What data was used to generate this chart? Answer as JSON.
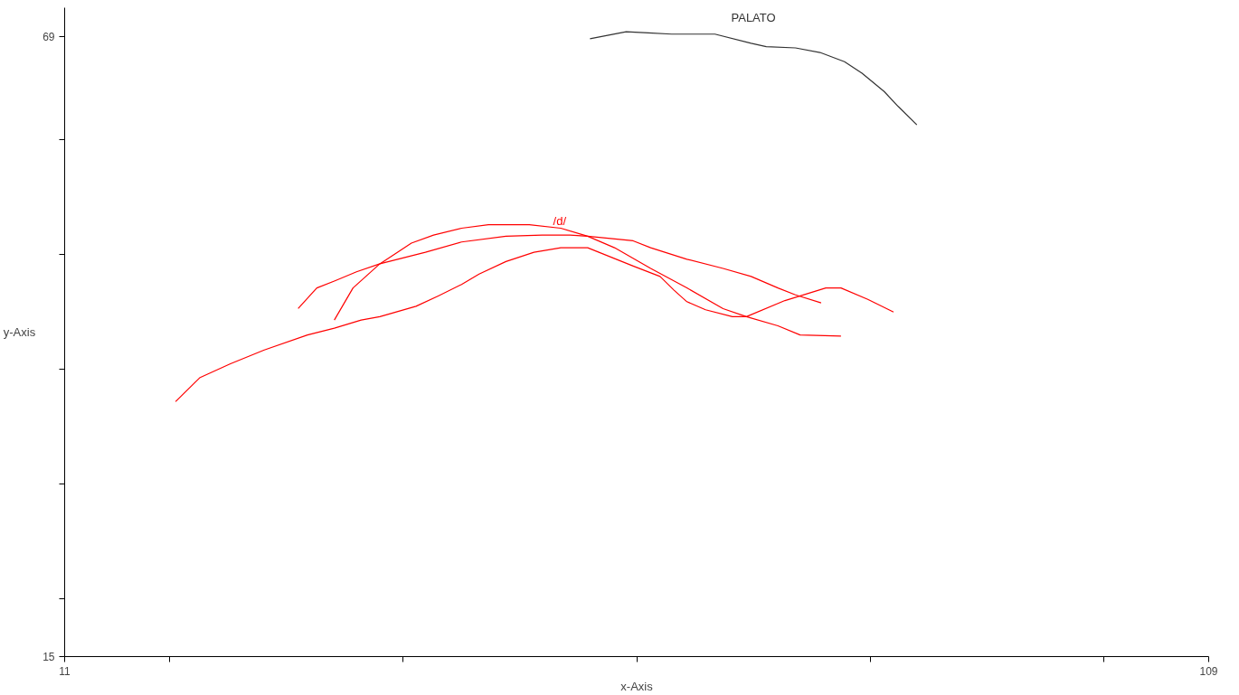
{
  "chart_data": {
    "type": "line",
    "xlabel": "x-Axis",
    "ylabel": "y-Axis",
    "xlim": [
      11,
      109
    ],
    "ylim": [
      15,
      71.5
    ],
    "xticks": [
      11,
      {
        "value": 20,
        "label": null
      },
      {
        "value": 40,
        "label": null
      },
      {
        "value": 60,
        "label": null
      },
      {
        "value": 80,
        "label": null
      },
      {
        "value": 100,
        "label": null
      },
      109
    ],
    "yticks": [
      15,
      {
        "value": 20,
        "label": null
      },
      {
        "value": 30,
        "label": null
      },
      {
        "value": 40,
        "label": null
      },
      {
        "value": 50,
        "label": null
      },
      {
        "value": 60,
        "label": null
      },
      69
    ],
    "grid": false,
    "legend": false,
    "marker": "none",
    "line_style": "solid",
    "series": [
      {
        "name": "PALATO",
        "color": "#333333",
        "x": [
          56.0,
          59.1,
          61.0,
          63.0,
          66.7,
          69.8,
          71.1,
          73.6,
          75.7,
          77.8,
          79.3,
          81.2,
          82.4,
          84.0
        ],
        "values": [
          68.8,
          69.4,
          69.3,
          69.2,
          69.2,
          68.4,
          68.1,
          68.0,
          67.6,
          66.8,
          65.8,
          64.2,
          62.9,
          61.3
        ]
      },
      {
        "color": "#ff0000",
        "x": [
          20.5,
          22.6,
          25.2,
          28.1,
          31.8,
          34.1,
          36.4,
          38.0,
          41.1,
          43.0,
          45.0,
          46.5,
          48.8,
          51.2,
          53.5,
          55.8,
          59.7,
          62.0,
          63.2,
          64.3,
          65.9,
          68.2,
          69.4,
          72.7,
          76.2,
          77.5,
          79.8,
          82.0
        ],
        "values": [
          37.2,
          39.3,
          40.5,
          41.7,
          43.0,
          43.6,
          44.3,
          44.6,
          45.5,
          46.4,
          47.4,
          48.3,
          49.4,
          50.2,
          50.6,
          50.6,
          49.0,
          48.1,
          46.9,
          45.9,
          45.2,
          44.6,
          44.6,
          46.0,
          47.1,
          47.1,
          46.1,
          45.0
        ]
      },
      {
        "color": "#ff0000",
        "x": [
          34.1,
          35.7,
          38.0,
          39.5,
          40.7,
          42.6,
          45.0,
          47.3,
          50.8,
          53.5,
          55.8,
          58.1,
          61.2,
          64.3,
          67.4,
          69.4,
          72.1,
          74.0,
          77.5
        ],
        "values": [
          44.3,
          47.1,
          49.2,
          50.2,
          51.0,
          51.7,
          52.3,
          52.6,
          52.6,
          52.3,
          51.6,
          50.6,
          48.8,
          47.1,
          45.3,
          44.6,
          43.8,
          43.0,
          42.9
        ]
      },
      {
        "name": "/d/",
        "color": "#ff0000",
        "x": [
          31.0,
          32.6,
          34.1,
          36.0,
          38.0,
          41.9,
          45.0,
          48.8,
          51.9,
          54.3,
          55.8,
          59.7,
          61.2,
          64.3,
          67.4,
          69.8,
          72.1,
          73.6,
          75.8
        ],
        "values": [
          45.3,
          47.1,
          47.7,
          48.5,
          49.2,
          50.2,
          51.1,
          51.6,
          51.7,
          51.7,
          51.6,
          51.2,
          50.6,
          49.6,
          48.8,
          48.1,
          47.1,
          46.5,
          45.8
        ]
      }
    ]
  }
}
